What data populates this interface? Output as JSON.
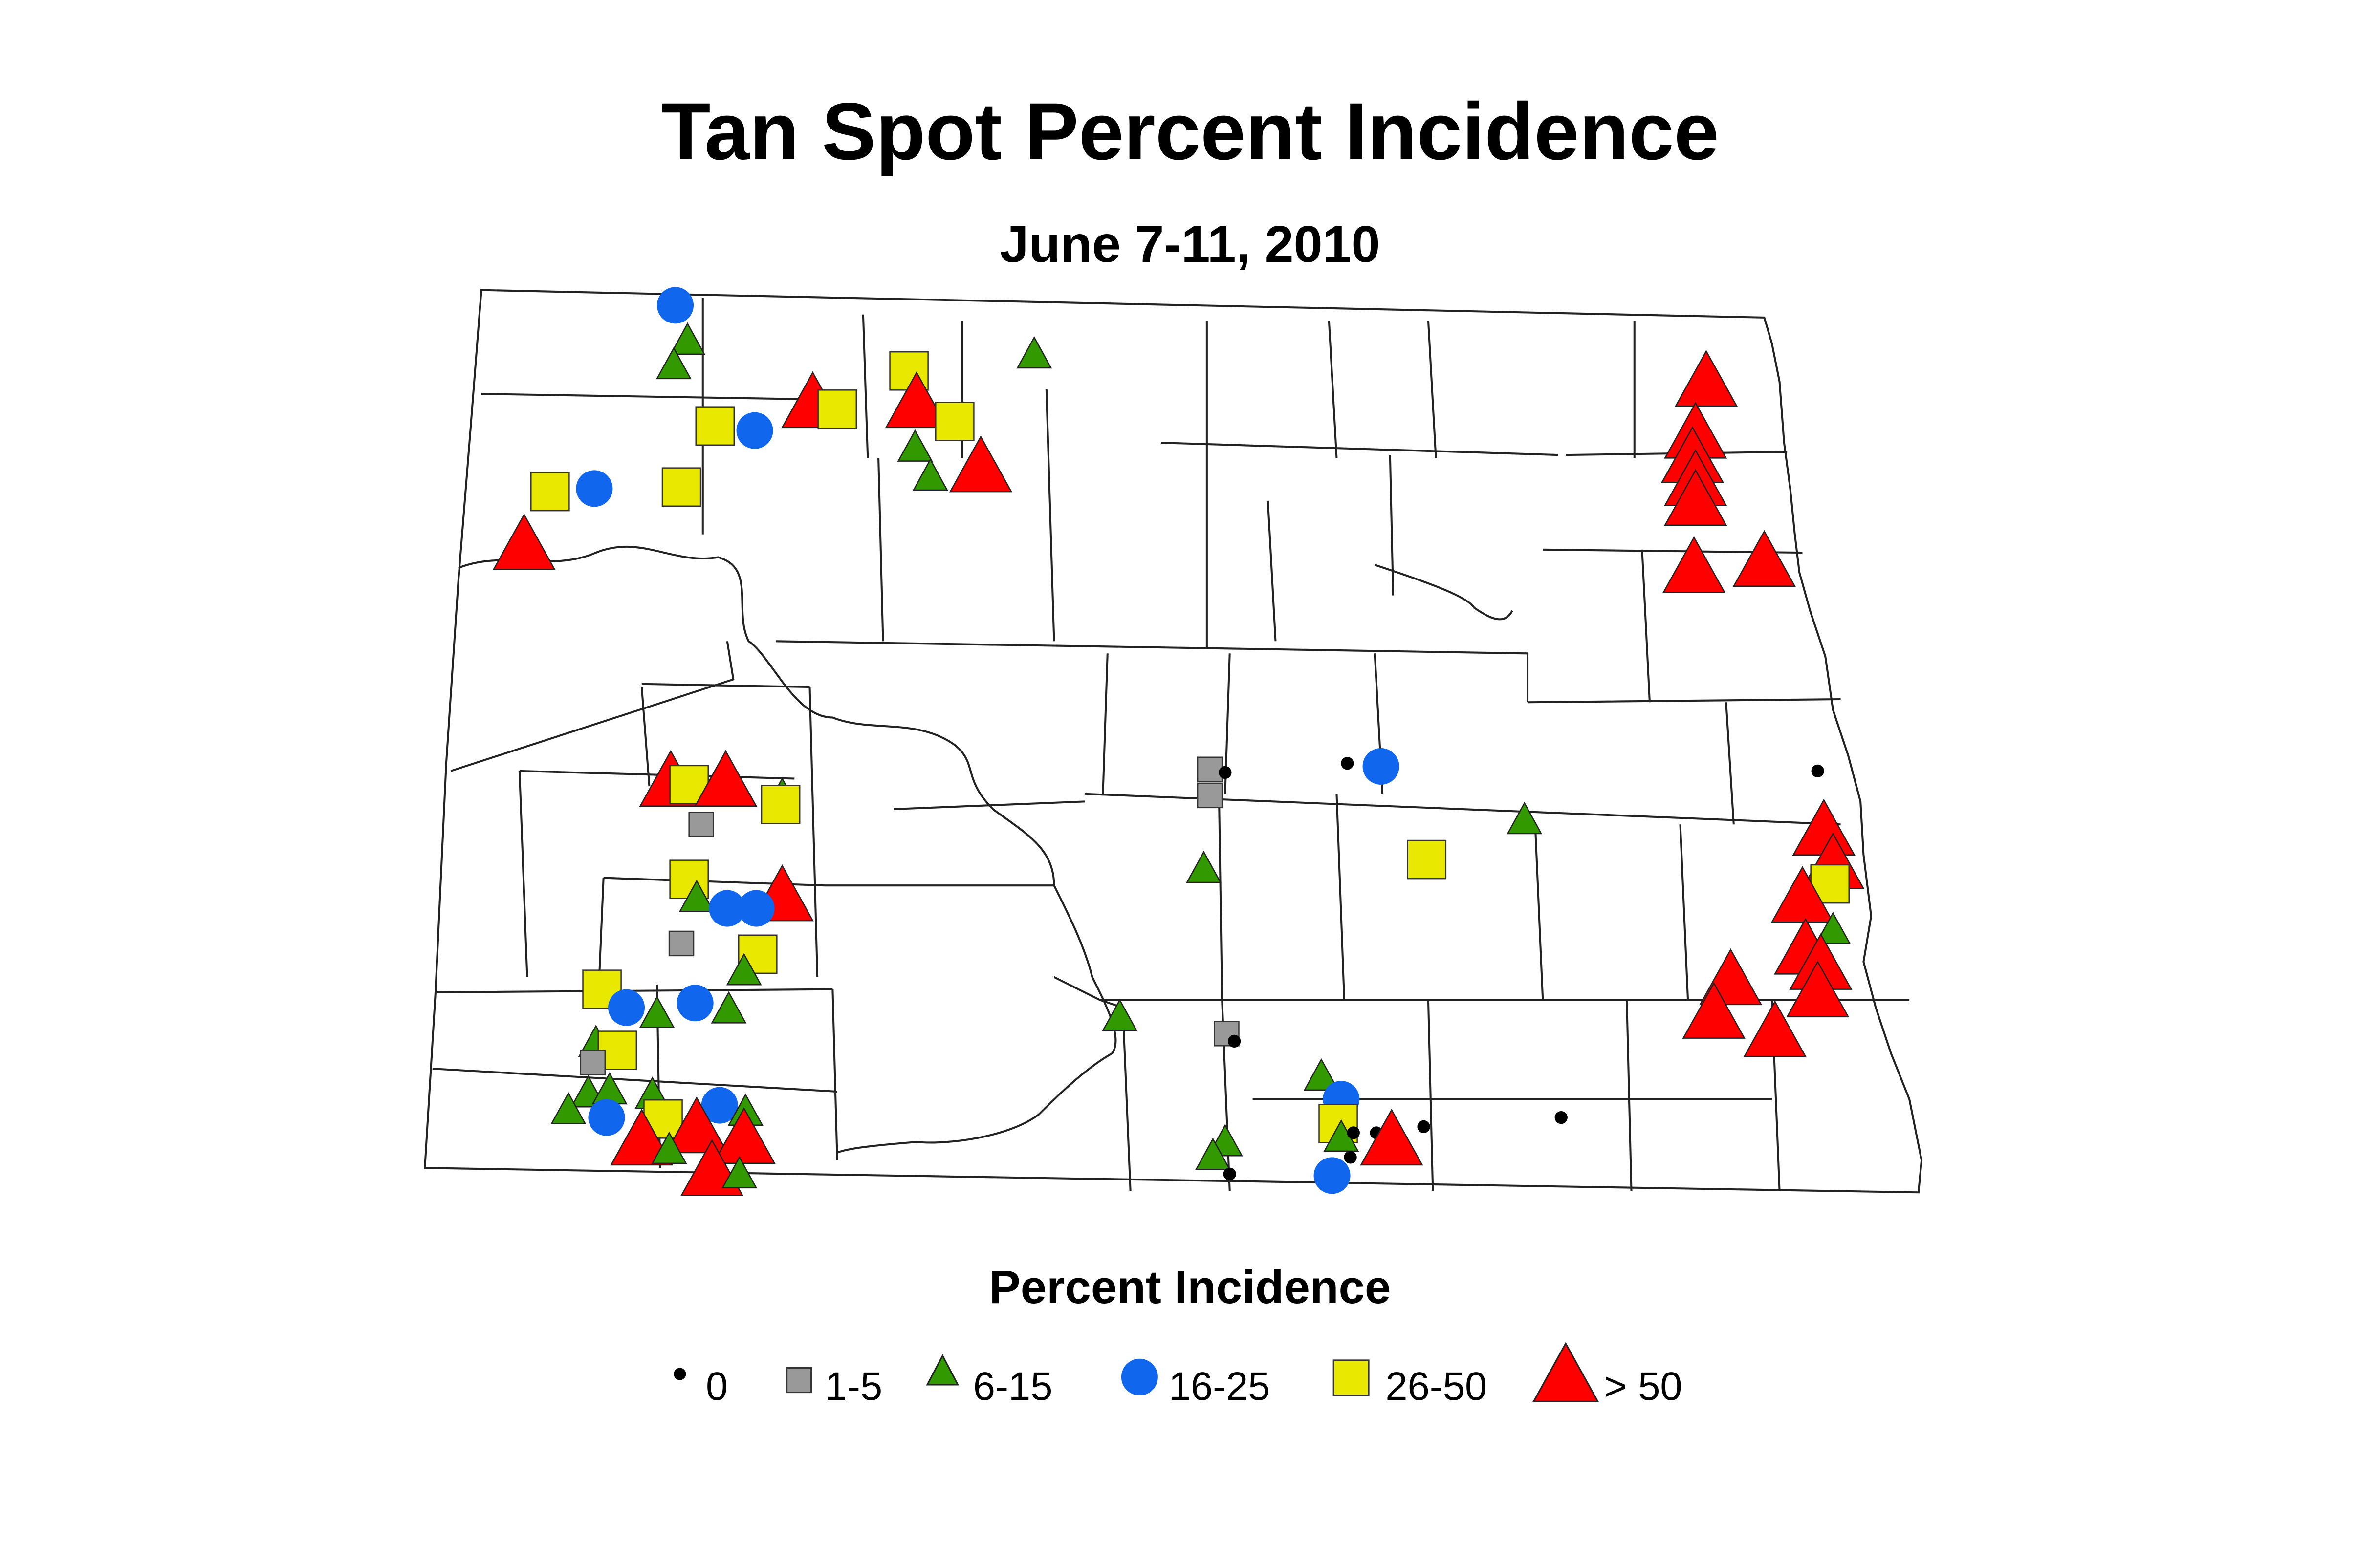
{
  "title": "Tan Spot Percent Incidence",
  "subtitle": "June 7-11, 2010",
  "legend": {
    "title": "Percent Incidence",
    "items": [
      {
        "label": "0",
        "shape": "dot",
        "color": "#000000"
      },
      {
        "label": "1-5",
        "shape": "square-small",
        "color": "#999999"
      },
      {
        "label": "6-15",
        "shape": "triangle-small",
        "color": "#339900"
      },
      {
        "label": "16-25",
        "shape": "circle",
        "color": "#1166ee"
      },
      {
        "label": "26-50",
        "shape": "square",
        "color": "#e8e800"
      },
      {
        "label": "> 50",
        "shape": "triangle-large",
        "color": "#ff0000"
      }
    ]
  }
}
